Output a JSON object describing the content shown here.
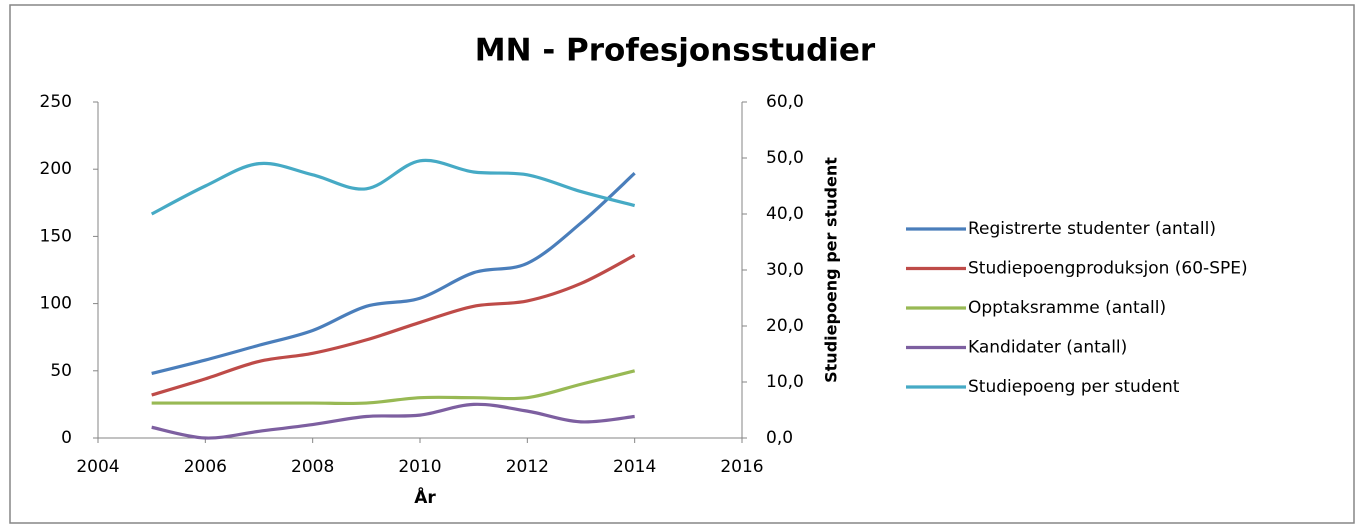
{
  "chart_data": {
    "type": "line",
    "title": "MN - Profesjonsstudier",
    "xlabel": "År",
    "y2label": "Studiepoeng per student",
    "x": [
      2005,
      2006,
      2007,
      2008,
      2009,
      2010,
      2011,
      2012,
      2013,
      2014
    ],
    "xlim": [
      2004,
      2016
    ],
    "xticks": [
      2004,
      2006,
      2008,
      2010,
      2012,
      2014,
      2016
    ],
    "ylim": [
      0,
      250
    ],
    "yticks": [
      0,
      50,
      100,
      150,
      200,
      250
    ],
    "y2lim": [
      0,
      60
    ],
    "y2ticks": [
      {
        "value": 0,
        "label": "0,0"
      },
      {
        "value": 10,
        "label": "10,0"
      },
      {
        "value": 20,
        "label": "20,0"
      },
      {
        "value": 30,
        "label": "30,0"
      },
      {
        "value": 40,
        "label": "40,0"
      },
      {
        "value": 50,
        "label": "50,0"
      },
      {
        "value": 60,
        "label": "60,0"
      }
    ],
    "grid": false,
    "legend": "right",
    "smooth": true,
    "series": [
      {
        "name": "Registrerte studenter (antall)",
        "color": "#4a7ebb",
        "values": [
          48,
          58,
          69,
          80,
          98,
          104,
          123,
          130,
          160,
          197
        ]
      },
      {
        "name": "Studiepoengproduksjon (60-SPE)",
        "color": "#be4b48",
        "values": [
          32,
          44,
          57,
          63,
          73,
          86,
          98,
          102,
          115,
          136
        ]
      },
      {
        "name": "Opptaksramme (antall)",
        "color": "#98b954",
        "values": [
          26,
          26,
          26,
          26,
          26,
          30,
          30,
          30,
          40,
          50
        ]
      },
      {
        "name": "Kandidater (antall)",
        "color": "#7d5fa0",
        "values": [
          8,
          0,
          5,
          10,
          16,
          17,
          25,
          20,
          12,
          16
        ]
      },
      {
        "name": "Studiepoeng per student",
        "color": "#46aac5",
        "axis": "y2",
        "values": [
          40,
          45,
          49,
          47,
          44.5,
          49.5,
          47.5,
          47,
          44,
          41.5
        ]
      }
    ]
  }
}
